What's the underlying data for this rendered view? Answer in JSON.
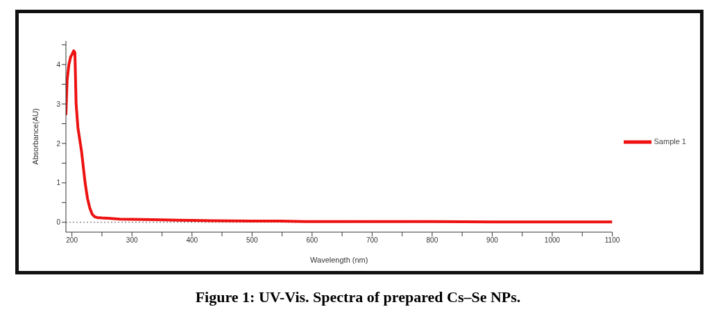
{
  "chart_data": {
    "type": "line",
    "title": "Figure 1: UV-Vis. Spectra of prepared Cs–Se NPs.",
    "xlabel": "Wavelength (nm)",
    "ylabel": "Absorbance(AU)",
    "series": [
      {
        "name": "Sample 1",
        "color": "#ee1111",
        "x": [
          190,
          192,
          195,
          198,
          200,
          203,
          205,
          207,
          210,
          213,
          216,
          219,
          222,
          226,
          230,
          234,
          238,
          242,
          250,
          261,
          280,
          318,
          350,
          400,
          432,
          500,
          546,
          590,
          700,
          800,
          900,
          1000,
          1100
        ],
        "values": [
          2.72,
          3.6,
          4.0,
          4.2,
          4.25,
          4.35,
          4.3,
          3.0,
          2.4,
          2.1,
          1.8,
          1.4,
          1.0,
          0.6,
          0.35,
          0.2,
          0.14,
          0.12,
          0.11,
          0.1,
          0.08,
          0.07,
          0.06,
          0.05,
          0.04,
          0.03,
          0.03,
          0.02,
          0.02,
          0.02,
          0.01,
          0.01,
          0.01
        ]
      }
    ],
    "xlim": [
      190,
      1100
    ],
    "xticks": [
      200,
      {
        "value": 250,
        "label": null
      },
      300,
      {
        "value": 350,
        "label": null
      },
      400,
      {
        "value": 450,
        "label": null
      },
      500,
      {
        "value": 550,
        "label": null
      },
      600,
      {
        "value": 650,
        "label": null
      },
      700,
      {
        "value": 750,
        "label": null
      },
      800,
      {
        "value": 850,
        "label": null
      },
      900,
      {
        "value": 950,
        "label": null
      },
      1000,
      {
        "value": 1050,
        "label": null
      },
      1100
    ],
    "ylim": [
      -0.25,
      4.6
    ],
    "yticks": [
      0,
      {
        "value": 0.5,
        "label": null
      },
      1,
      {
        "value": 1.5,
        "label": null
      },
      2,
      {
        "value": 2.5,
        "label": null
      },
      3,
      {
        "value": 3.5,
        "label": null
      },
      4,
      {
        "value": 4.5,
        "label": null
      }
    ],
    "ref_lines": [
      {
        "axis": "y",
        "value": 0,
        "line_style": "dotted",
        "color": "#555555"
      }
    ],
    "grid": false,
    "legend": "right",
    "marker": "none",
    "line_style": "solid"
  }
}
